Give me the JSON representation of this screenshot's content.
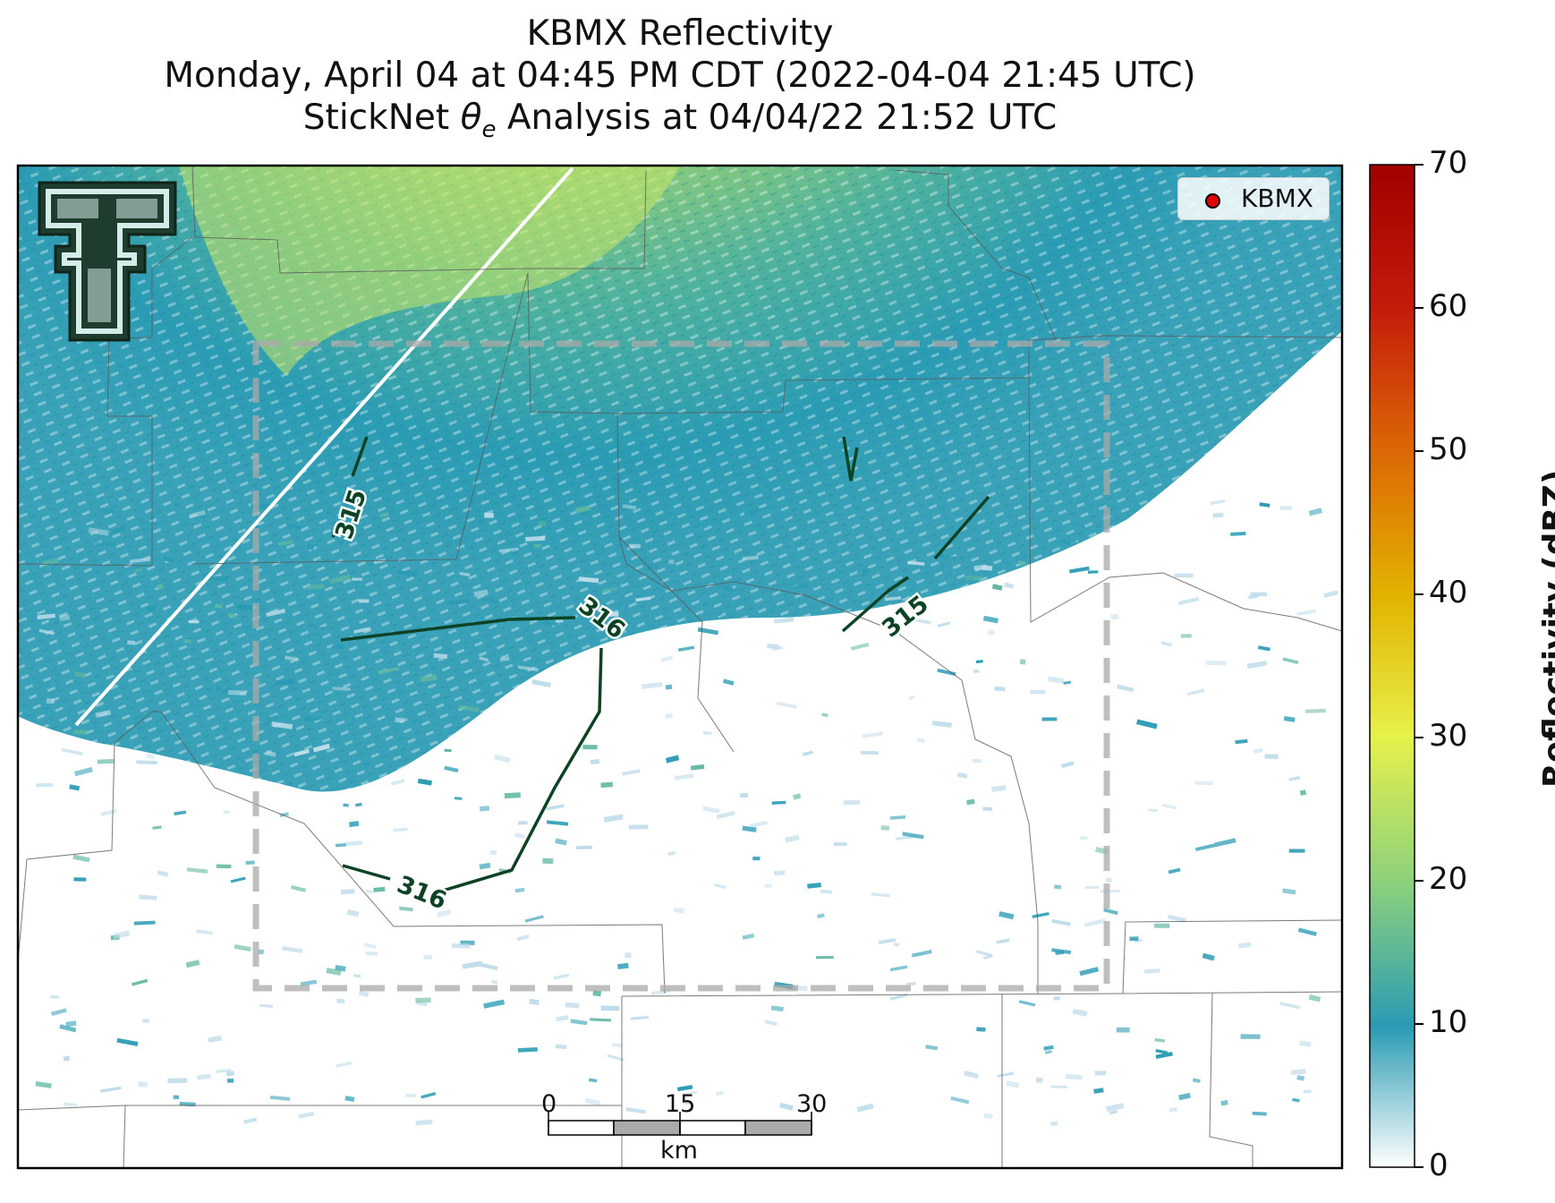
{
  "title": {
    "line1": "KBMX Reflectivity",
    "line2": "Monday, April 04 at 04:45 PM CDT (2022-04-04 21:45 UTC)",
    "line3_prefix": "StickNet ",
    "line3_theta": "θ",
    "line3_sub": "e",
    "line3_suffix": " Analysis at 04/04/22 21:52 UTC"
  },
  "legend": {
    "label": "KBMX",
    "marker_color": "#e00000"
  },
  "colorbar": {
    "label": "Reflectivity (dBZ)",
    "ticks": [
      "0",
      "10",
      "20",
      "30",
      "40",
      "50",
      "60",
      "70"
    ],
    "min": 0,
    "max": 70,
    "colors": [
      "#ffffff",
      "#2a9bb3",
      "#8ad07e",
      "#e6f14a",
      "#e2b300",
      "#dc6a06",
      "#c41a0a",
      "#a00000"
    ]
  },
  "contours": [
    {
      "label": "315"
    },
    {
      "label": "316"
    },
    {
      "label": "316"
    },
    {
      "label": "315"
    }
  ],
  "scale_bar": {
    "ticks": [
      "0",
      "15",
      "30"
    ],
    "unit": "km"
  },
  "icons": {
    "logo": "texas-tech-double-t-logo",
    "radar_site": "kbmx-radar-marker"
  }
}
